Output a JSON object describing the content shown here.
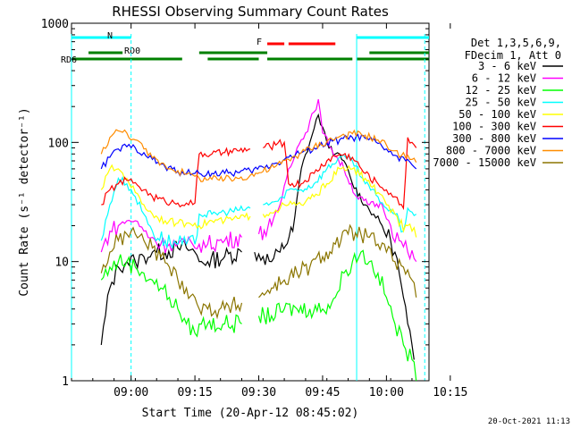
{
  "chart_data": {
    "type": "line",
    "title": "RHESSI Observing Summary Count Rates",
    "xlabel": "Start Time (20-Apr-12 08:45:02)",
    "ylabel": "Count Rate (s⁻¹ detector⁻¹)",
    "y_scale": "log",
    "ylim": [
      1,
      1000
    ],
    "xlim_minutes": [
      -14,
      70
    ],
    "x_tick_labels": [
      "09:00",
      "09:15",
      "09:30",
      "09:45",
      "10:00",
      "10:15"
    ],
    "x_tick_minutes": [
      0,
      15,
      30,
      45,
      60,
      75
    ],
    "y_tick_labels": [
      "1",
      "10",
      "100",
      "1000"
    ],
    "legend": {
      "placement": "right",
      "header": [
        "Det 1,3,5,6,9,",
        "FDecim 1, Att 0"
      ]
    },
    "series": [
      {
        "name": "3 - 6 keV",
        "color": "#000000",
        "x": [
          -7,
          -5,
          -3,
          -1,
          1,
          3,
          5,
          6,
          8,
          11,
          13,
          15,
          16,
          18,
          22,
          26,
          29,
          31,
          33,
          35,
          38,
          40,
          42,
          44,
          46,
          48,
          50,
          52,
          55,
          57,
          59,
          61,
          62,
          63,
          64,
          65,
          66,
          66.5,
          67
        ],
        "y": [
          2,
          6,
          9,
          10,
          10,
          11,
          12,
          12,
          12,
          13,
          13,
          12,
          10,
          10,
          11,
          12,
          12,
          11,
          10,
          12,
          18,
          60,
          100,
          170,
          100,
          80,
          70,
          45,
          30,
          25,
          20,
          15,
          12,
          8,
          5,
          3,
          2,
          1.5,
          1
        ],
        "gaps_after": [
          15,
          37
        ]
      },
      {
        "name": "6 - 12 keV",
        "color": "#ff00ff",
        "x": [
          -7,
          -5,
          -3,
          -1,
          1,
          3,
          5,
          7,
          9,
          11,
          13,
          15,
          16,
          18,
          22,
          26,
          30,
          33,
          35,
          37,
          39,
          41,
          43,
          44,
          45,
          47,
          50,
          53,
          56,
          59,
          61,
          63,
          65,
          67
        ],
        "y": [
          12,
          18,
          20,
          22,
          22,
          18,
          16,
          14,
          14,
          14,
          14,
          13,
          14,
          14,
          15,
          16,
          17,
          20,
          30,
          60,
          90,
          120,
          180,
          230,
          120,
          90,
          60,
          35,
          30,
          30,
          20,
          15,
          12,
          10
        ],
        "gaps_after": [
          15,
          36
        ]
      },
      {
        "name": "12 - 25 keV",
        "color": "#00ff00",
        "x": [
          -7,
          -5,
          -3,
          -1,
          1,
          3,
          5,
          7,
          9,
          11,
          13,
          15,
          16,
          18,
          22,
          26,
          30,
          33,
          36,
          39,
          42,
          45,
          48,
          50,
          52,
          54,
          56,
          58,
          60,
          62,
          64,
          66,
          67
        ],
        "y": [
          7,
          9,
          10,
          10,
          9,
          8,
          7,
          6,
          5,
          4,
          3,
          2.5,
          3,
          3,
          3,
          3,
          3.5,
          3.5,
          4,
          4,
          4,
          4,
          5,
          8,
          10,
          12,
          10,
          8,
          5,
          3,
          2,
          1.5,
          1
        ],
        "gaps_after": [
          15,
          36
        ]
      },
      {
        "name": "25 - 50 keV",
        "color": "#00ffff",
        "x": [
          -7,
          -5,
          -3,
          -1,
          1,
          3,
          5,
          8,
          11,
          13,
          15,
          16,
          19,
          22,
          25,
          28,
          31,
          34,
          36,
          37,
          40,
          43,
          46,
          49,
          52,
          55,
          58,
          60,
          62,
          63,
          64,
          65,
          66,
          67
        ],
        "y": [
          15,
          30,
          50,
          45,
          35,
          25,
          18,
          15,
          14,
          14,
          14,
          25,
          25,
          26,
          27,
          28,
          30,
          32,
          34,
          40,
          40,
          45,
          60,
          75,
          70,
          45,
          35,
          28,
          25,
          22,
          18,
          28,
          26,
          25
        ],
        "gaps_after": [
          15,
          36,
          63
        ]
      },
      {
        "name": "50 - 100 keV",
        "color": "#ffff00",
        "x": [
          -7,
          -5,
          -3,
          -1,
          1,
          3,
          5,
          8,
          11,
          13,
          15,
          16,
          19,
          22,
          25,
          28,
          31,
          34,
          36,
          37,
          40,
          43,
          46,
          49,
          52,
          55,
          58,
          60,
          62,
          63,
          64,
          65,
          66,
          67
        ],
        "y": [
          40,
          60,
          60,
          50,
          38,
          30,
          25,
          22,
          21,
          21,
          21,
          20,
          22,
          22,
          23,
          24,
          25,
          27,
          30,
          30,
          30,
          35,
          45,
          60,
          60,
          50,
          38,
          30,
          25,
          20,
          18,
          20,
          18,
          16
        ],
        "gaps_after": [
          15,
          36,
          63
        ]
      },
      {
        "name": "100 - 300 keV",
        "color": "#ff0000",
        "x": [
          -7,
          -5,
          -3,
          -1,
          1,
          3,
          5,
          8,
          11,
          13,
          15,
          16,
          19,
          22,
          25,
          28,
          31,
          34,
          36,
          37,
          40,
          43,
          46,
          49,
          52,
          55,
          58,
          60,
          62,
          63,
          64,
          65,
          66,
          67
        ],
        "y": [
          30,
          40,
          45,
          48,
          46,
          40,
          35,
          32,
          31,
          31,
          31,
          80,
          80,
          82,
          85,
          88,
          90,
          95,
          100,
          45,
          45,
          55,
          70,
          80,
          75,
          55,
          45,
          40,
          35,
          30,
          28,
          110,
          100,
          90
        ],
        "gaps_after": [
          15,
          36,
          63
        ]
      },
      {
        "name": "300 - 800 keV",
        "color": "#0000ff",
        "x": [
          -7,
          -5,
          -3,
          -1,
          1,
          3,
          5,
          8,
          11,
          13,
          15,
          16,
          19,
          22,
          25,
          28,
          31,
          34,
          37,
          40,
          43,
          46,
          49,
          52,
          55,
          58,
          60,
          62,
          63,
          64,
          65,
          66,
          67
        ],
        "y": [
          60,
          75,
          88,
          92,
          90,
          82,
          72,
          62,
          57,
          55,
          55,
          55,
          55,
          55,
          56,
          58,
          62,
          67,
          75,
          82,
          90,
          98,
          105,
          110,
          108,
          98,
          88,
          78,
          70,
          75,
          72,
          65,
          60
        ],
        "gaps_after": []
      },
      {
        "name": "800 - 7000 keV",
        "color": "#ff8c00",
        "x": [
          -7,
          -5,
          -3,
          -1,
          1,
          3,
          5,
          8,
          11,
          13,
          15,
          16,
          19,
          22,
          25,
          28,
          31,
          34,
          37,
          40,
          43,
          46,
          49,
          52,
          55,
          58,
          60,
          62,
          63,
          64,
          65,
          66,
          67
        ],
        "y": [
          80,
          110,
          125,
          120,
          105,
          88,
          74,
          64,
          58,
          54,
          52,
          50,
          49,
          49,
          50,
          53,
          57,
          63,
          72,
          82,
          92,
          102,
          112,
          118,
          115,
          105,
          95,
          85,
          75,
          82,
          78,
          72,
          68
        ],
        "gaps_after": []
      },
      {
        "name": "7000 - 15000 keV",
        "color": "#8b7500",
        "x": [
          -7,
          -5,
          -3,
          -1,
          1,
          3,
          5,
          7,
          9,
          11,
          13,
          15,
          16,
          18,
          22,
          26,
          30,
          33,
          36,
          39,
          42,
          45,
          48,
          51,
          54,
          56,
          58,
          60,
          62,
          64,
          66,
          67
        ],
        "y": [
          8,
          12,
          15,
          17,
          17,
          15,
          13,
          11,
          9,
          7,
          6,
          5,
          4,
          4,
          4,
          4.5,
          5,
          6,
          7,
          8,
          9,
          11,
          14,
          17,
          17,
          16,
          14,
          12,
          10,
          9,
          7,
          5
        ],
        "gaps_after": [
          15
        ]
      }
    ],
    "annotations": {
      "flag_lines": [
        {
          "label": "N",
          "color": "#00ffff",
          "segments": [
            [
              -14,
              0
            ],
            [
              53,
              70
            ]
          ]
        },
        {
          "label": "F",
          "color": "#ff0000",
          "segments": [
            [
              32,
              36
            ],
            [
              37,
              48
            ]
          ]
        },
        {
          "label": "RD0",
          "color": "#008000",
          "segments": [
            [
              -10,
              -2
            ],
            [
              16,
              32
            ],
            [
              56,
              70
            ]
          ]
        },
        {
          "label": "RD6",
          "color": "#008000",
          "segments": [
            [
              -14,
              12
            ],
            [
              18,
              30
            ],
            [
              32,
              52
            ],
            [
              53,
              70
            ]
          ]
        }
      ],
      "vertical_lines_solid_minutes": [
        -14,
        53
      ],
      "vertical_lines_dashed_minutes": [
        0,
        69
      ]
    },
    "timestamp": "20-Oct-2021 11:13"
  }
}
